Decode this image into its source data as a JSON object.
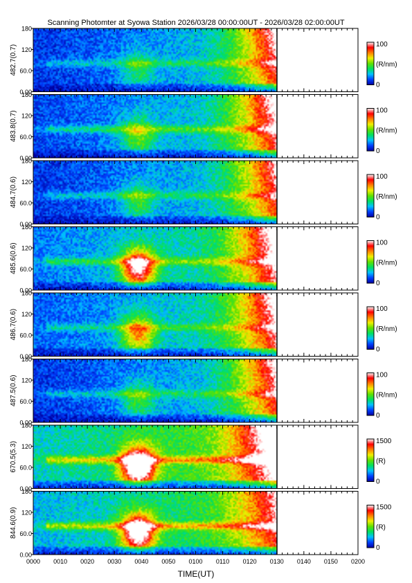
{
  "title": "Scanning Photomter at Syowa Station 2026/03/28 00:00:00UT - 2026/03/28 02:00:00UT",
  "x_axis": {
    "label": "TIME(UT)",
    "ticks": [
      "0000",
      "0010",
      "0020",
      "0030",
      "0040",
      "0050",
      "0100",
      "0110",
      "0120",
      "0130",
      "0140",
      "0150",
      "0200"
    ]
  },
  "chart_data": {
    "type": "heatmap",
    "title": "Scanning Photomter at Syowa Station 2026/03/28 00:00:00UT - 2026/03/28 02:00:00UT",
    "xlabel": "TIME(UT)",
    "xlim": [
      "0000",
      "0200"
    ],
    "data_end": "0130",
    "ylim": [
      0,
      180
    ],
    "y_tick_labels": [
      "0.00",
      "60.0",
      "120",
      "180"
    ],
    "colormap": [
      "#0000a0",
      "#0040ff",
      "#00c0ff",
      "#00e060",
      "#60e000",
      "#f0f000",
      "#ff8000",
      "#ff0000",
      "#ffffff"
    ],
    "panels": [
      {
        "label": "482.7(0.7)",
        "colorbar_max": "100",
        "colorbar_min": "0",
        "unit": "(R/nm)",
        "features": {
          "base": 0.1,
          "late": 0.75,
          "event": 0.2,
          "arc": 0.15,
          "bottom_dark": true
        }
      },
      {
        "label": "483.8(0.7)",
        "colorbar_max": "100",
        "colorbar_min": "0",
        "unit": "(R/nm)",
        "features": {
          "base": 0.12,
          "late": 0.8,
          "event": 0.3,
          "arc": 0.2,
          "bottom_dark": true
        }
      },
      {
        "label": "484.7(0.6)",
        "colorbar_max": "100",
        "colorbar_min": "0",
        "unit": "(R/nm)",
        "features": {
          "base": 0.1,
          "late": 0.7,
          "event": 0.25,
          "arc": 0.15,
          "bottom_dark": true
        }
      },
      {
        "label": "485.6(0.6)",
        "colorbar_max": "100",
        "colorbar_min": "0",
        "unit": "(R/nm)",
        "features": {
          "base": 0.18,
          "late": 0.8,
          "event": 0.8,
          "arc": 0.2,
          "bottom_dark": true
        }
      },
      {
        "label": "486.7(0.6)",
        "colorbar_max": "100",
        "colorbar_min": "0",
        "unit": "(R/nm)",
        "features": {
          "base": 0.15,
          "late": 0.78,
          "event": 0.5,
          "arc": 0.15,
          "bottom_dark": true
        }
      },
      {
        "label": "487.5(0.6)",
        "colorbar_max": "100",
        "colorbar_min": "0",
        "unit": "(R/nm)",
        "features": {
          "base": 0.1,
          "late": 0.75,
          "event": 0.25,
          "arc": 0.15,
          "bottom_dark": true
        }
      },
      {
        "label": "670.5(5.3)",
        "colorbar_max": "1500",
        "colorbar_min": "0",
        "unit": "(R)",
        "features": {
          "base": 0.3,
          "late": 0.85,
          "event": 0.95,
          "arc": 0.3,
          "bottom_dark": true
        }
      },
      {
        "label": "844.6(0.9)",
        "colorbar_max": "1500",
        "colorbar_min": "0",
        "unit": "(R)",
        "features": {
          "base": 0.25,
          "late": 0.55,
          "event": 0.85,
          "arc": 0.3,
          "bottom_dark": true
        }
      }
    ]
  }
}
